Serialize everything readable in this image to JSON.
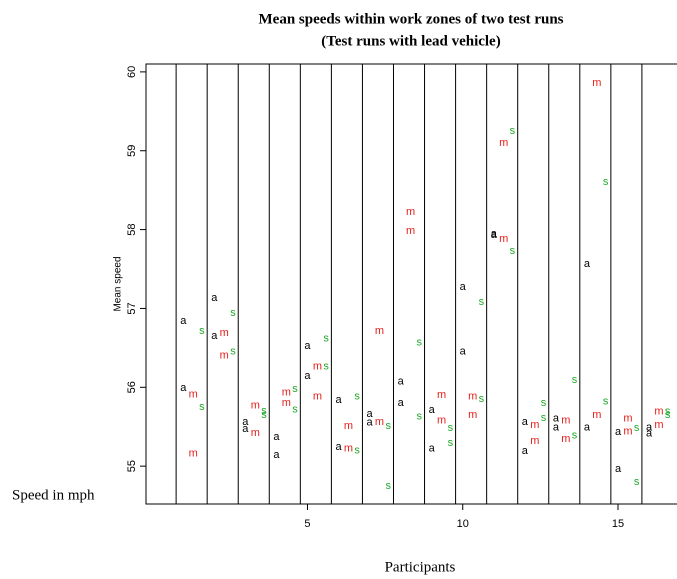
{
  "chart_data": {
    "type": "scatter",
    "title": "Mean speeds within work zones of two test runs",
    "subtitle": "(Test runs with lead vehicle)",
    "y_label": "Mean speed",
    "outer_y_label": "Speed in mph",
    "x_label": "Participants",
    "xlim": [
      -0.2,
      16.9
    ],
    "ylim": [
      54.52,
      60.1
    ],
    "xticks": [
      5,
      10,
      15
    ],
    "yticks": [
      55,
      56,
      57,
      58,
      59,
      60
    ],
    "dividers": [
      0.77,
      1.77,
      2.77,
      3.77,
      4.77,
      5.77,
      6.77,
      7.77,
      8.77,
      9.77,
      10.77,
      11.77,
      12.77,
      13.77,
      14.77,
      15.77
    ],
    "series": [
      {
        "name": "a",
        "color": "#000000",
        "x": [
          1,
          1,
          2,
          2,
          3,
          3,
          4,
          4,
          5,
          5,
          6,
          6,
          7,
          7,
          8,
          8,
          9,
          9,
          10,
          10,
          11,
          11,
          12,
          12,
          13,
          13,
          14,
          14,
          15,
          15,
          16,
          16
        ],
        "values": [
          56.84,
          55.99,
          57.13,
          56.65,
          55.56,
          55.47,
          55.37,
          55.14,
          56.52,
          56.14,
          55.84,
          55.24,
          55.66,
          55.55,
          56.07,
          55.8,
          55.71,
          55.22,
          57.27,
          56.45,
          57.94,
          57.93,
          55.56,
          55.19,
          55.6,
          55.49,
          57.56,
          55.49,
          55.43,
          54.96,
          55.49,
          55.41
        ]
      },
      {
        "name": "m",
        "color": "#e8201b",
        "x": [
          1.32,
          1.32,
          2.32,
          2.32,
          3.32,
          3.32,
          4.32,
          4.32,
          5.32,
          5.32,
          6.32,
          6.32,
          7.32,
          7.32,
          8.32,
          8.32,
          9.32,
          9.32,
          10.32,
          10.32,
          11.32,
          11.32,
          12.32,
          12.32,
          13.32,
          13.32,
          14.32,
          14.32,
          15.32,
          15.32,
          16.32,
          16.32
        ],
        "values": [
          55.91,
          55.16,
          56.69,
          56.4,
          55.77,
          55.42,
          55.93,
          55.8,
          56.26,
          55.88,
          55.51,
          55.22,
          56.71,
          55.56,
          58.22,
          57.98,
          55.9,
          55.58,
          55.88,
          55.65,
          59.1,
          57.88,
          55.52,
          55.32,
          55.58,
          55.34,
          59.86,
          55.65,
          55.6,
          55.44,
          55.69,
          55.52
        ]
      },
      {
        "name": "s",
        "color": "#1faa2a",
        "x": [
          1.6,
          1.6,
          2.6,
          2.6,
          3.6,
          3.6,
          4.6,
          4.6,
          5.6,
          5.6,
          6.6,
          6.6,
          7.6,
          7.6,
          8.6,
          8.6,
          9.6,
          9.6,
          10.6,
          10.6,
          11.6,
          11.6,
          12.6,
          12.6,
          13.6,
          13.6,
          14.6,
          14.6,
          15.6,
          15.6,
          16.6,
          16.6
        ],
        "values": [
          56.71,
          55.75,
          56.94,
          56.45,
          55.7,
          55.65,
          55.98,
          55.72,
          56.62,
          56.26,
          55.88,
          55.2,
          55.51,
          54.75,
          56.57,
          55.63,
          55.48,
          55.29,
          57.08,
          55.85,
          59.25,
          57.73,
          55.8,
          55.61,
          56.09,
          55.39,
          58.6,
          55.82,
          55.48,
          54.8,
          55.69,
          55.65
        ]
      }
    ]
  }
}
